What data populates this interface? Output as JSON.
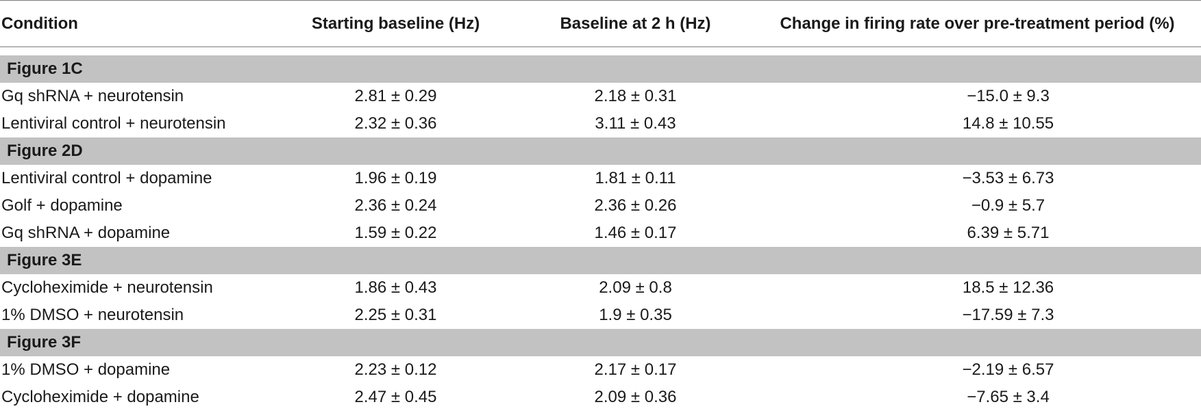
{
  "header": {
    "condition": "Condition",
    "starting_baseline": "Starting baseline (Hz)",
    "baseline_2h": "Baseline at 2 h (Hz)",
    "change": "Change in firing rate over pre-treatment period (%)"
  },
  "sections": [
    {
      "title": "Figure 1C",
      "rows": [
        {
          "condition": "Gq shRNA + neurotensin",
          "starting": "2.81 ± 0.29",
          "baseline2h": "2.18 ± 0.31",
          "change": "−15.0 ± 9.3"
        },
        {
          "condition": "Lentiviral control + neurotensin",
          "starting": "2.32 ± 0.36",
          "baseline2h": "3.11 ± 0.43",
          "change": "14.8 ± 10.55"
        }
      ]
    },
    {
      "title": "Figure 2D",
      "rows": [
        {
          "condition": "Lentiviral control + dopamine",
          "starting": "1.96 ± 0.19",
          "baseline2h": "1.81 ± 0.11",
          "change": "−3.53 ± 6.73"
        },
        {
          "condition": "Golf + dopamine",
          "starting": "2.36 ± 0.24",
          "baseline2h": "2.36 ± 0.26",
          "change": "−0.9 ± 5.7"
        },
        {
          "condition": "Gq shRNA + dopamine",
          "starting": "1.59 ± 0.22",
          "baseline2h": "1.46 ± 0.17",
          "change": "6.39 ± 5.71"
        }
      ]
    },
    {
      "title": "Figure 3E",
      "rows": [
        {
          "condition": "Cycloheximide + neurotensin",
          "starting": "1.86 ± 0.43",
          "baseline2h": "2.09 ± 0.8",
          "change": "18.5 ± 12.36"
        },
        {
          "condition": "1% DMSO + neurotensin",
          "starting": "2.25 ± 0.31",
          "baseline2h": "1.9 ± 0.35",
          "change": "−17.59 ± 7.3"
        }
      ]
    },
    {
      "title": "Figure 3F",
      "rows": [
        {
          "condition": "1% DMSO + dopamine",
          "starting": "2.23 ± 0.12",
          "baseline2h": "2.17 ± 0.17",
          "change": "−2.19 ± 6.57"
        },
        {
          "condition": "Cycloheximide + dopamine",
          "starting": "2.47 ± 0.45",
          "baseline2h": "2.09 ± 0.36",
          "change": "−7.65 ± 3.4"
        }
      ]
    }
  ]
}
